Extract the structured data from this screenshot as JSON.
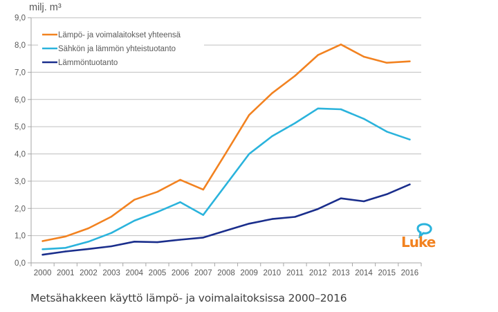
{
  "chart_data": {
    "type": "line",
    "title": "",
    "caption": "Metsähakkeen käyttö lämpö- ja voimalaitoksissa 2000–2016",
    "ylabel": "milj. m³",
    "xlabel": "",
    "ylim": [
      0,
      9
    ],
    "yticks": [
      "0,0",
      "1,0",
      "2,0",
      "3,0",
      "4,0",
      "5,0",
      "6,0",
      "7,0",
      "8,0",
      "9,0"
    ],
    "grid": true,
    "legend_position": "top-left",
    "categories": [
      "2000",
      "2001",
      "2002",
      "2003",
      "2004",
      "2005",
      "2006",
      "2007",
      "2008",
      "2009",
      "2010",
      "2011",
      "2012",
      "2013",
      "2014",
      "2015",
      "2016"
    ],
    "series": [
      {
        "name": "Lämpö- ja voimalaitokset yhteensä",
        "color": "#F28220",
        "values": [
          0.8,
          0.97,
          1.27,
          1.7,
          2.32,
          2.61,
          3.05,
          2.69,
          4.05,
          5.43,
          6.23,
          6.87,
          7.63,
          8.02,
          7.57,
          7.35,
          7.4
        ]
      },
      {
        "name": "Sähkön ja lämmön yhteistuotanto",
        "color": "#2AB3DC",
        "values": [
          0.5,
          0.55,
          0.78,
          1.1,
          1.55,
          1.87,
          2.23,
          1.76,
          2.88,
          4.0,
          4.65,
          5.13,
          5.67,
          5.64,
          5.29,
          4.82,
          4.53
        ]
      },
      {
        "name": "Lämmöntuotanto",
        "color": "#1A2E8C",
        "values": [
          0.3,
          0.42,
          0.51,
          0.61,
          0.78,
          0.76,
          0.85,
          0.93,
          1.19,
          1.44,
          1.61,
          1.69,
          1.98,
          2.37,
          2.26,
          2.52,
          2.88
        ]
      }
    ]
  },
  "logo": {
    "text": "Luke",
    "text_color": "#F28220",
    "bubble_color": "#2AB3DC"
  }
}
